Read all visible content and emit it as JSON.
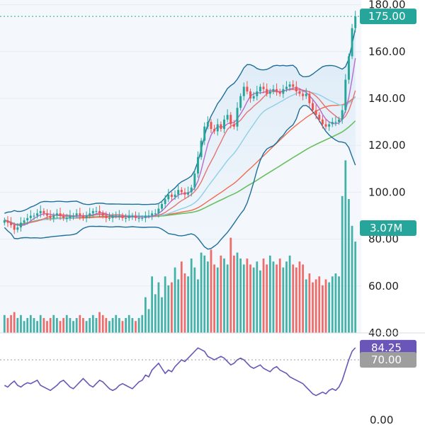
{
  "chart_data": [
    {
      "type": "candlestick",
      "panel": "price",
      "y_ticks": [
        "180.00",
        "160.00",
        "140.00",
        "120.00",
        "100.00",
        "80.00",
        "60.00",
        "40.00"
      ],
      "ylim": [
        40,
        182
      ],
      "last_price_label": "175.00",
      "last_price": 175,
      "volume_label": "3.07M",
      "colors": {
        "up": "#26a69a",
        "down": "#ef5350",
        "bollinger": "#1f6e99",
        "ma_fast": "#b86ad0",
        "ma_mid": "#e57373",
        "ma_slow": "#ef6c4f",
        "ma_long": "#6abf5f",
        "ma_cyan": "#8ecfe8",
        "price_badge": "#26a69a",
        "volume_badge": "#26a69a"
      },
      "closes": [
        88,
        87,
        86,
        84,
        85,
        87,
        88,
        89,
        90,
        90,
        91,
        92,
        91,
        90,
        89,
        90,
        91,
        90,
        89,
        89,
        90,
        90,
        91,
        90,
        89,
        90,
        91,
        92,
        92,
        91,
        90,
        89,
        89,
        90,
        90,
        90,
        89,
        89,
        90,
        90,
        89,
        89,
        89,
        90,
        90,
        91,
        91,
        93,
        95,
        97,
        99,
        98,
        99,
        101,
        100,
        99,
        100,
        102,
        108,
        115,
        122,
        128,
        130,
        127,
        126,
        129,
        127,
        131,
        133,
        129,
        128,
        136,
        141,
        145,
        143,
        140,
        141,
        143,
        145,
        144,
        142,
        143,
        144,
        143,
        142,
        144,
        145,
        146,
        145,
        143,
        142,
        141,
        142,
        138,
        135,
        133,
        131,
        129,
        128,
        129,
        130,
        130,
        131,
        135,
        148,
        158,
        170,
        175
      ],
      "volumes": [
        0.6,
        0.5,
        0.6,
        0.7,
        0.5,
        0.6,
        0.4,
        0.5,
        0.6,
        0.5,
        0.4,
        0.6,
        0.5,
        0.4,
        0.5,
        0.6,
        0.5,
        0.4,
        0.5,
        0.6,
        0.5,
        0.4,
        0.5,
        0.6,
        0.5,
        0.4,
        0.5,
        0.6,
        0.5,
        0.7,
        0.6,
        0.5,
        0.4,
        0.5,
        0.6,
        0.5,
        0.4,
        0.5,
        0.6,
        0.5,
        0.4,
        0.5,
        0.6,
        1.2,
        0.8,
        1.9,
        1.3,
        1.7,
        1.2,
        1.9,
        1.6,
        1.7,
        2.2,
        1.8,
        2.4,
        2.0,
        1.9,
        2.5,
        2.2,
        1.8,
        2.7,
        2.6,
        2.4,
        2.8,
        2.3,
        2.2,
        2.6,
        2.5,
        2.3,
        3.2,
        2.6,
        2.7,
        2.5,
        2.3,
        2.5,
        2.3,
        2.2,
        2.4,
        2.1,
        2.5,
        2.3,
        2.6,
        2.4,
        2.3,
        2.5,
        2.2,
        2.4,
        2.6,
        2.3,
        2.2,
        2.4,
        2.3,
        1.8,
        2.0,
        1.7,
        1.8,
        1.9,
        1.6,
        1.8,
        1.7,
        1.9,
        2.0,
        1.9,
        4.6,
        5.8,
        4.5,
        3.6,
        3.07
      ]
    },
    {
      "type": "line",
      "panel": "rsi",
      "value_label": "84.25",
      "level_label": "70.00",
      "bottom_label": "0.00",
      "value": 84.25,
      "level": 70,
      "colors": {
        "line": "#6a55b8",
        "value_badge": "#6a55b8",
        "level_badge": "#9e9e9e"
      },
      "values": [
        40,
        38,
        42,
        45,
        40,
        38,
        41,
        43,
        42,
        44,
        46,
        40,
        38,
        36,
        34,
        37,
        40,
        44,
        46,
        42,
        38,
        36,
        40,
        44,
        48,
        44,
        40,
        38,
        42,
        46,
        44,
        40,
        36,
        34,
        36,
        40,
        42,
        40,
        38,
        36,
        40,
        44,
        46,
        52,
        50,
        58,
        62,
        66,
        60,
        54,
        58,
        56,
        62,
        66,
        70,
        68,
        72,
        76,
        80,
        84,
        82,
        80,
        74,
        72,
        70,
        72,
        74,
        72,
        68,
        64,
        66,
        70,
        72,
        70,
        66,
        62,
        60,
        62,
        64,
        60,
        58,
        56,
        60,
        62,
        58,
        56,
        54,
        50,
        48,
        46,
        44,
        42,
        38,
        34,
        30,
        28,
        30,
        32,
        30,
        34,
        36,
        34,
        38,
        46,
        58,
        70,
        80,
        84.25
      ]
    }
  ]
}
